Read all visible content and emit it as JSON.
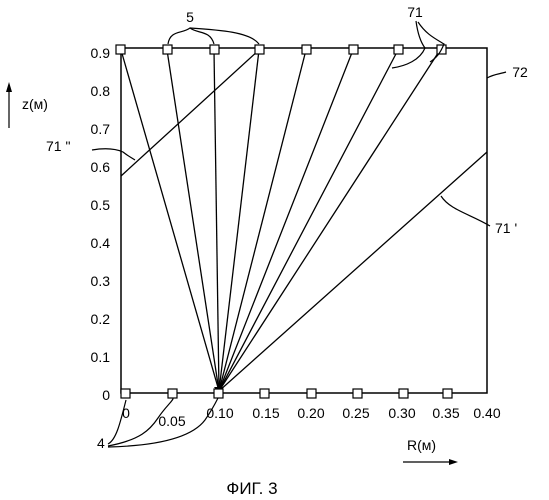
{
  "figure": {
    "caption": "ФИГ. 3",
    "z_axis_label": "z(м)",
    "r_axis_label": "R(м)",
    "y_ticks": [
      "0",
      "0.1",
      "0.2",
      "0.3",
      "0.4",
      "0.5",
      "0.6",
      "0.7",
      "0.8",
      "0.9"
    ],
    "x_ticks": [
      "0",
      "0.05",
      "0.10",
      "0.15",
      "0.20",
      "0.25",
      "0.30",
      "0.35",
      "0.40"
    ],
    "refs": {
      "top_markers": "5",
      "bottom_markers": "4",
      "rays": "71",
      "ray_upper": "71 \"",
      "ray_lower": "71 '",
      "frame": "72"
    },
    "geometry_data": {
      "source_point": {
        "r": 0.1,
        "z": 0.0
      },
      "top_marker_r": [
        0.0,
        0.05,
        0.1,
        0.15,
        0.2,
        0.25,
        0.3,
        0.35
      ],
      "bottom_marker_r": [
        0.0,
        0.05,
        0.1,
        0.15,
        0.2,
        0.25,
        0.3,
        0.35
      ],
      "ray_71_upper": {
        "from": {
          "r": 0.0,
          "z": 0.58
        },
        "to": {
          "r": 0.15,
          "z": 0.9
        }
      },
      "ray_71_lower": {
        "from": {
          "r": 0.1,
          "z": 0.0
        },
        "to": {
          "r": 0.4,
          "z": 0.64
        }
      }
    }
  }
}
